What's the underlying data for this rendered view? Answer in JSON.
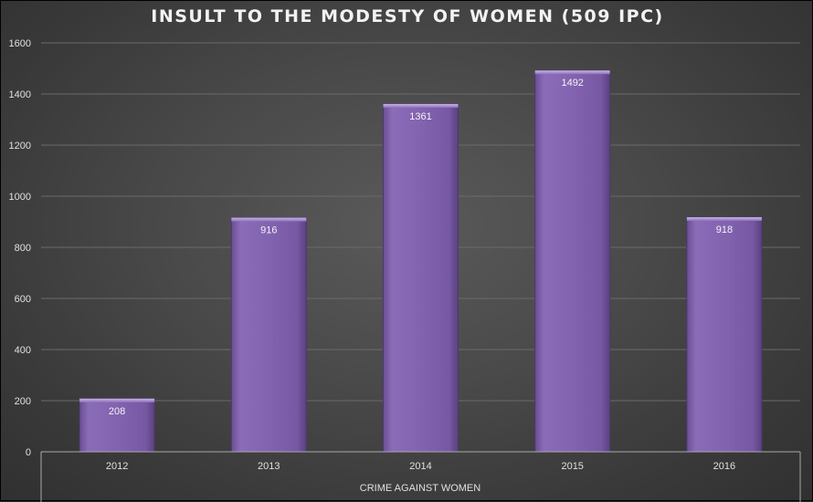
{
  "chart_data": {
    "type": "bar",
    "title": "INSULT TO THE MODESTY OF WOMEN (509 IPC)",
    "categories": [
      "2012",
      "2013",
      "2014",
      "2015",
      "2016"
    ],
    "values": [
      208,
      916,
      1361,
      1492,
      918
    ],
    "data_labels": [
      "208",
      "916",
      "1361",
      "1492",
      "918"
    ],
    "xlabel": "CRIME AGAINST WOMEN",
    "ylabel": "",
    "ylim": [
      0,
      1600
    ],
    "yticks": [
      "0",
      "200",
      "400",
      "600",
      "800",
      "1000",
      "1200",
      "1400",
      "1600"
    ],
    "grid": true,
    "bar_color": "#8064a2",
    "background": "#4a4a4a"
  }
}
